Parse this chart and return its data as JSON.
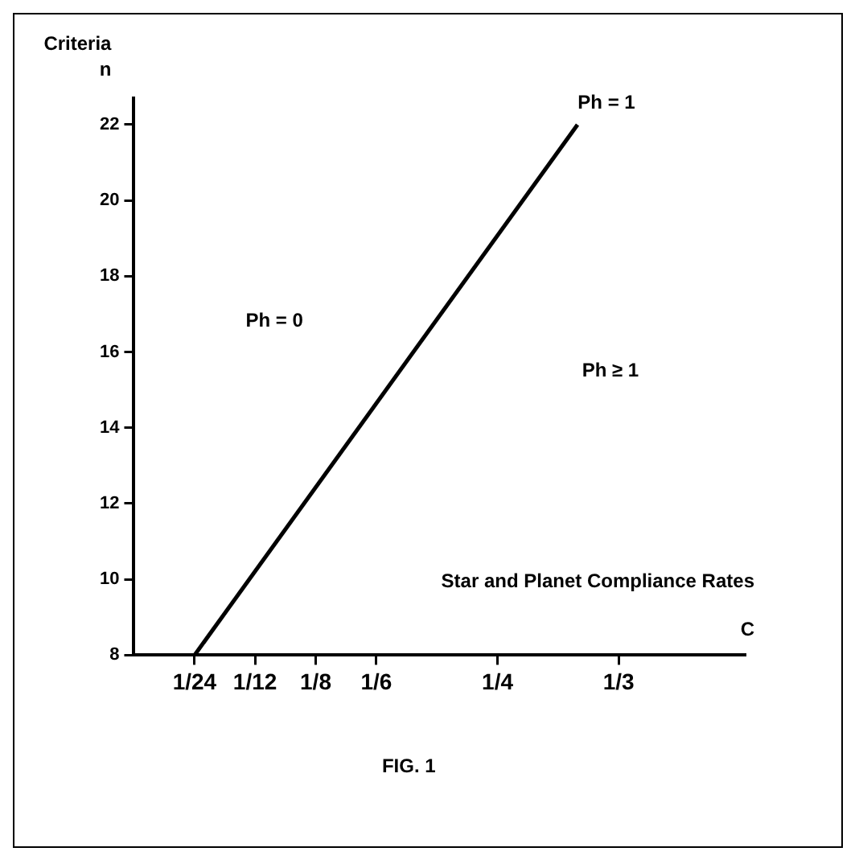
{
  "chart_data": {
    "type": "line",
    "xlabel": "Star and Planet Compliance Rates\nC",
    "ylabel": "Criteria\nn",
    "x": [
      0.0417,
      0.305
    ],
    "series": [
      {
        "color": "#000000",
        "values": [
          8,
          22
        ]
      }
    ],
    "xlim": [
      0,
      0.42
    ],
    "ylim": [
      8,
      22.7
    ],
    "xticks": [
      {
        "value": 0.0417,
        "label": "1/24"
      },
      {
        "value": 0.0833,
        "label": "1/12"
      },
      {
        "value": 0.125,
        "label": "1/8"
      },
      {
        "value": 0.1667,
        "label": "1/6"
      },
      {
        "value": 0.25,
        "label": "1/4"
      },
      {
        "value": 0.3333,
        "label": "1/3"
      }
    ],
    "yticks": [
      8,
      10,
      12,
      14,
      16,
      18,
      20,
      22
    ],
    "grid": false,
    "legend": false,
    "marker": "none",
    "line_style": "solid",
    "annotations": [
      {
        "text": "Ph = 1",
        "x": 0.305,
        "y": 22
      },
      "Ph = 0",
      "Ph ≥ 1",
      "FIG. 1"
    ]
  }
}
